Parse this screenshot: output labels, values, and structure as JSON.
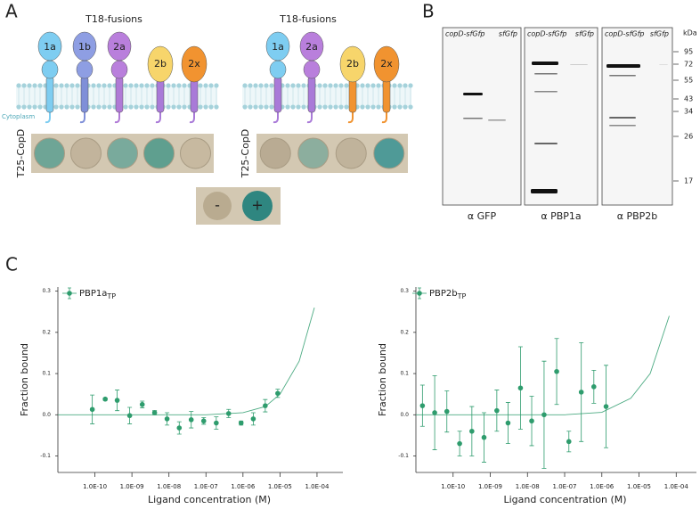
{
  "panel_a": {
    "label": "A",
    "membrane_label": "Cytoplasm",
    "controls": [
      "-",
      "+"
    ],
    "left": {
      "title": "T18-fusions",
      "row_label": "T25-CopD",
      "proteins": [
        {
          "label": "1a",
          "color": "#7ecdf1",
          "stalk_color": "#7ecdf1"
        },
        {
          "label": "1b",
          "color": "#8e9ee3",
          "stalk_color": "#7f8fd8"
        },
        {
          "label": "2a",
          "color": "#b97fdc",
          "stalk_color": "#b07ad6"
        },
        {
          "label": "2b",
          "color": "#f7d56b",
          "stalk_color": "#a97ad8"
        },
        {
          "label": "2x",
          "color": "#f19330",
          "stalk_color": "#a97ad8"
        }
      ],
      "spot_colors": [
        "#6ea596",
        "#c2b49c",
        "#79aa9c",
        "#5f9f8f",
        "#c7b9a0"
      ]
    },
    "right": {
      "title": "T18-fusions",
      "row_label": "T25-CopD",
      "proteins": [
        {
          "label": "1a",
          "color": "#7ecdf1",
          "stalk_color": "#a97ad8"
        },
        {
          "label": "2a",
          "color": "#b97fdc",
          "stalk_color": "#a97ad8"
        },
        {
          "label": "2b",
          "color": "#f7d56b",
          "stalk_color": "#f19330"
        },
        {
          "label": "2x",
          "color": "#f19330",
          "stalk_color": "#f19330"
        }
      ],
      "spot_colors": [
        "#b9ab93",
        "#8cae9e",
        "#c0b39b",
        "#4f9a97"
      ]
    }
  },
  "panel_b": {
    "label": "B",
    "unit": "kDa",
    "markers": [
      95,
      72,
      55,
      43,
      34,
      26,
      17
    ],
    "blots": [
      {
        "lanes": [
          "copD-sfGfp",
          "sfGfp"
        ],
        "antibody": "α GFP"
      },
      {
        "lanes": [
          "copD-sfGfp",
          "sfGfp"
        ],
        "antibody": "α PBP1a"
      },
      {
        "lanes": [
          "copD-sfGfp",
          "sfGfp"
        ],
        "antibody": "α PBP2b"
      }
    ]
  },
  "panel_c": {
    "label": "C"
  },
  "chart_data": [
    {
      "type": "scatter",
      "x_label": "Ligand concentration (M)",
      "y_label": "Fraction bound",
      "xscale": "log",
      "legend": "upper left",
      "xlim": [
        1e-11,
        0.0005
      ],
      "ylim": [
        -0.14,
        0.31
      ],
      "xticks": [
        {
          "value": 1e-10,
          "label": "1.0E-10"
        },
        {
          "value": 1e-09,
          "label": "1.0E-09"
        },
        {
          "value": 1e-08,
          "label": "1.0E-08"
        },
        {
          "value": 1e-07,
          "label": "1.0E-07"
        },
        {
          "value": 1e-06,
          "label": "1.0E-06"
        },
        {
          "value": 1e-05,
          "label": "1.0E-05"
        },
        {
          "value": 0.0001,
          "label": "1.0E-04"
        }
      ],
      "yticks": [
        -0.1,
        {
          "value": 0,
          "label": "0.0"
        },
        0.1,
        0.2,
        0.3
      ],
      "series": [
        {
          "name": "PBP1a",
          "name_subscript": "TP",
          "color": "#2e9c6d",
          "x": [
            8.5e-11,
            1.9e-10,
            4e-10,
            8.7e-10,
            1.9e-09,
            4.1e-09,
            8.9e-09,
            1.9e-08,
            4e-08,
            8.7e-08,
            1.9e-07,
            4.1e-07,
            8.9e-07,
            1.9e-06,
            4e-06,
            8.7e-06
          ],
          "values": [
            0.013,
            0.038,
            0.035,
            -0.002,
            0.025,
            0.005,
            -0.01,
            -0.032,
            -0.012,
            -0.015,
            -0.02,
            0.003,
            -0.02,
            -0.01,
            0.022,
            0.052
          ],
          "errors": [
            0.035,
            0.003,
            0.025,
            0.02,
            0.008,
            0.005,
            0.015,
            0.015,
            0.02,
            0.008,
            0.015,
            0.01,
            0.005,
            0.015,
            0.015,
            0.01
          ],
          "fit": {
            "x": [
              1e-11,
              1e-07,
              1e-06,
              4e-06,
              1e-05,
              3.3e-05,
              8.5e-05
            ],
            "values": [
              0,
              0,
              0.005,
              0.02,
              0.05,
              0.13,
              0.26
            ]
          }
        }
      ]
    },
    {
      "type": "scatter",
      "x_label": "Ligand concentration (M)",
      "y_label": "Fraction bound",
      "xscale": "log",
      "legend": "upper left",
      "xlim": [
        1e-11,
        0.00035
      ],
      "ylim": [
        -0.14,
        0.31
      ],
      "xticks": [
        {
          "value": 1e-10,
          "label": "1.0E-10"
        },
        {
          "value": 1e-09,
          "label": "1.0E-09"
        },
        {
          "value": 1e-08,
          "label": "1.0E-08"
        },
        {
          "value": 1e-07,
          "label": "1.0E-07"
        },
        {
          "value": 1e-06,
          "label": "1.0E-06"
        },
        {
          "value": 1e-05,
          "label": "1.0E-05"
        },
        {
          "value": 0.0001,
          "label": "1.0E-04"
        }
      ],
      "yticks": [
        -0.1,
        {
          "value": 0,
          "label": "0.0"
        },
        0.1,
        0.2,
        0.3
      ],
      "series": [
        {
          "name": "PBP2b",
          "name_subscript": "TP",
          "color": "#2e9c6d",
          "x": [
            1.5e-11,
            3.2e-11,
            6.8e-11,
            1.5e-10,
            3.2e-10,
            6.8e-10,
            1.5e-09,
            3e-09,
            6.5e-09,
            1.3e-08,
            2.8e-08,
            6.1e-08,
            1.3e-07,
            2.8e-07,
            6.1e-07,
            1.3e-06
          ],
          "values": [
            0.022,
            0.005,
            0.008,
            -0.07,
            -0.04,
            -0.055,
            0.01,
            -0.02,
            0.065,
            -0.015,
            0.0,
            0.105,
            -0.065,
            0.055,
            0.068,
            0.02
          ],
          "errors": [
            0.05,
            0.09,
            0.05,
            0.03,
            0.06,
            0.06,
            0.05,
            0.05,
            0.1,
            0.06,
            0.13,
            0.08,
            0.025,
            0.12,
            0.04,
            0.1
          ],
          "fit": {
            "x": [
              1e-11,
              1e-07,
              1e-06,
              6e-06,
              2e-05,
              6.5e-05
            ],
            "values": [
              0,
              0,
              0.006,
              0.04,
              0.1,
              0.24
            ]
          }
        }
      ]
    }
  ]
}
